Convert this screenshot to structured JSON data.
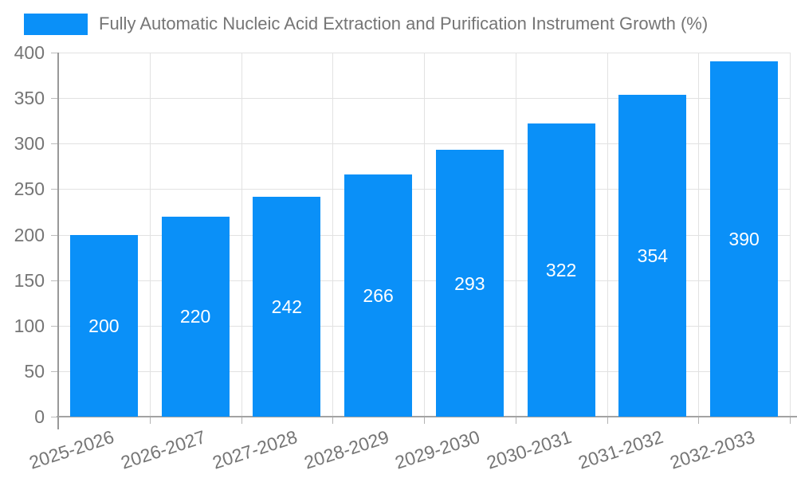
{
  "legend": {
    "label": "Fully Automatic Nucleic Acid Extraction and Purification Instrument Growth (%)"
  },
  "chart_data": {
    "type": "bar",
    "title": "Fully Automatic Nucleic Acid Extraction and Purification Instrument Growth (%)",
    "categories": [
      "2025-2026",
      "2026-2027",
      "2027-2028",
      "2028-2029",
      "2029-2030",
      "2030-2031",
      "2031-2032",
      "2032-2033"
    ],
    "values": [
      200,
      220,
      242,
      266,
      293,
      322,
      354,
      390
    ],
    "xlabel": "",
    "ylabel": "",
    "ylim": [
      0,
      400
    ],
    "yticks": [
      0,
      50,
      100,
      150,
      200,
      250,
      300,
      350,
      400
    ],
    "grid": true,
    "legend_position": "top",
    "bar_color": "#0a90f8",
    "grid_color": "#e2e2e2",
    "axis_text_color": "#757575",
    "bar_label_color": "#ffffff"
  }
}
